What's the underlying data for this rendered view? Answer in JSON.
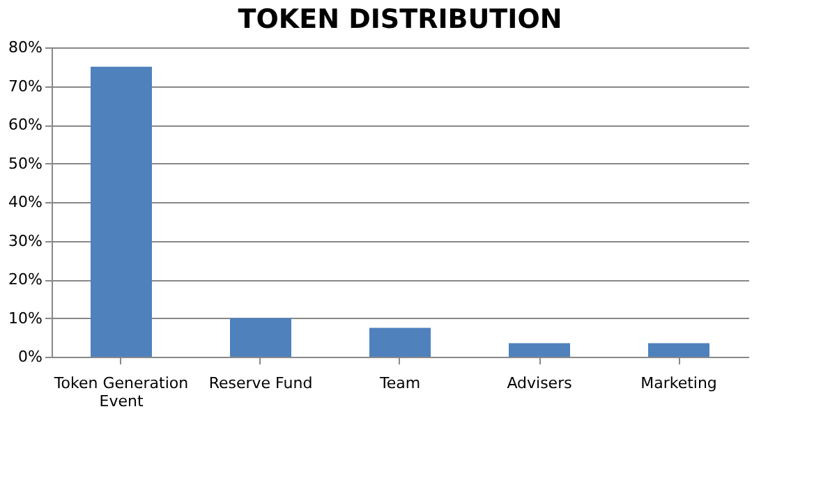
{
  "chart_data": {
    "type": "bar",
    "title": "TOKEN DISTRIBUTION",
    "categories": [
      "Token Generation Event",
      "Reserve Fund",
      "Team",
      "Advisers",
      "Marketing"
    ],
    "values": [
      75,
      10,
      7.5,
      3.5,
      3.5
    ],
    "color": "#4f81bd",
    "ylim": [
      0,
      80
    ],
    "yticks": [
      {
        "value": 0,
        "label": "0%"
      },
      {
        "value": 10,
        "label": "10%"
      },
      {
        "value": 20,
        "label": "20%"
      },
      {
        "value": 30,
        "label": "30%"
      },
      {
        "value": 40,
        "label": "40%"
      },
      {
        "value": 50,
        "label": "50%"
      },
      {
        "value": 60,
        "label": "60%"
      },
      {
        "value": 70,
        "label": "70%"
      },
      {
        "value": 80,
        "label": "80%"
      }
    ],
    "grid": "y"
  }
}
